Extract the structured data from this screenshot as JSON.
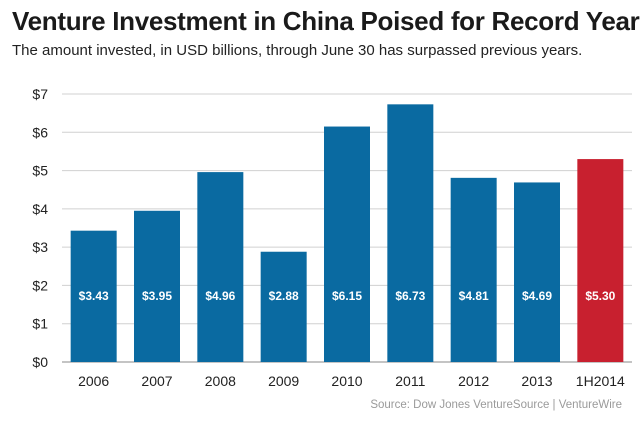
{
  "chart_data": {
    "type": "bar",
    "title": "Venture Investment in China Poised for Record Year",
    "subtitle": "The amount invested, in USD billions, through June 30 has surpassed previous years.",
    "categories": [
      "2006",
      "2007",
      "2008",
      "2009",
      "2010",
      "2011",
      "2012",
      "2013",
      "1H2014"
    ],
    "values": [
      3.43,
      3.95,
      4.96,
      2.88,
      6.15,
      6.73,
      4.81,
      4.69,
      5.3
    ],
    "data_labels": [
      "$3.43",
      "$3.95",
      "$4.96",
      "$2.88",
      "$6.15",
      "$6.73",
      "$4.81",
      "$4.69",
      "$5.30"
    ],
    "y_ticks": [
      0,
      1,
      2,
      3,
      4,
      5,
      6,
      7
    ],
    "y_tick_labels": [
      "$0",
      "$1",
      "$2",
      "$3",
      "$4",
      "$5",
      "$6",
      "$7"
    ],
    "ylim": [
      0,
      7
    ],
    "xlabel": "",
    "ylabel": "",
    "grid": true,
    "bar_color": "#0a6aa1",
    "highlight_color": "#c8202f",
    "highlight_index": 8,
    "source": "Source: Dow Jones VentureSource  |  VentureWire"
  }
}
